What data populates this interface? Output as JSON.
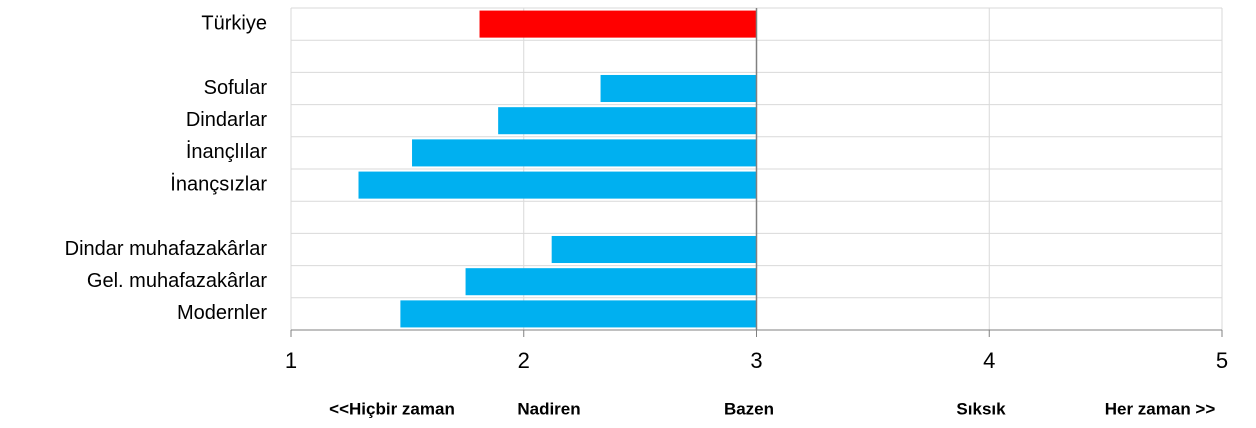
{
  "chart_data": {
    "type": "bar",
    "orientation": "horizontal",
    "categories": [
      "Türkiye",
      null,
      "Sofular",
      "Dindarlar",
      "İnançlılar",
      "İnançsızlar",
      null,
      "Dindar muhafazakârlar",
      "Gel. muhafazakârlar",
      "Modernler"
    ],
    "values": [
      1.81,
      null,
      2.33,
      1.89,
      1.52,
      1.29,
      null,
      2.12,
      1.75,
      1.47
    ],
    "colors": [
      "#ff0000",
      null,
      "#00b0f0",
      "#00b0f0",
      "#00b0f0",
      "#00b0f0",
      null,
      "#00b0f0",
      "#00b0f0",
      "#00b0f0"
    ],
    "bar_base": 3,
    "xlim": [
      1,
      5
    ],
    "xticks": [
      1,
      2,
      3,
      4,
      5
    ],
    "scale_labels": [
      "<<Hiçbir zaman",
      "Nadiren",
      "Bazen",
      "Sıksık",
      "Her zaman >>"
    ],
    "grid": true
  }
}
